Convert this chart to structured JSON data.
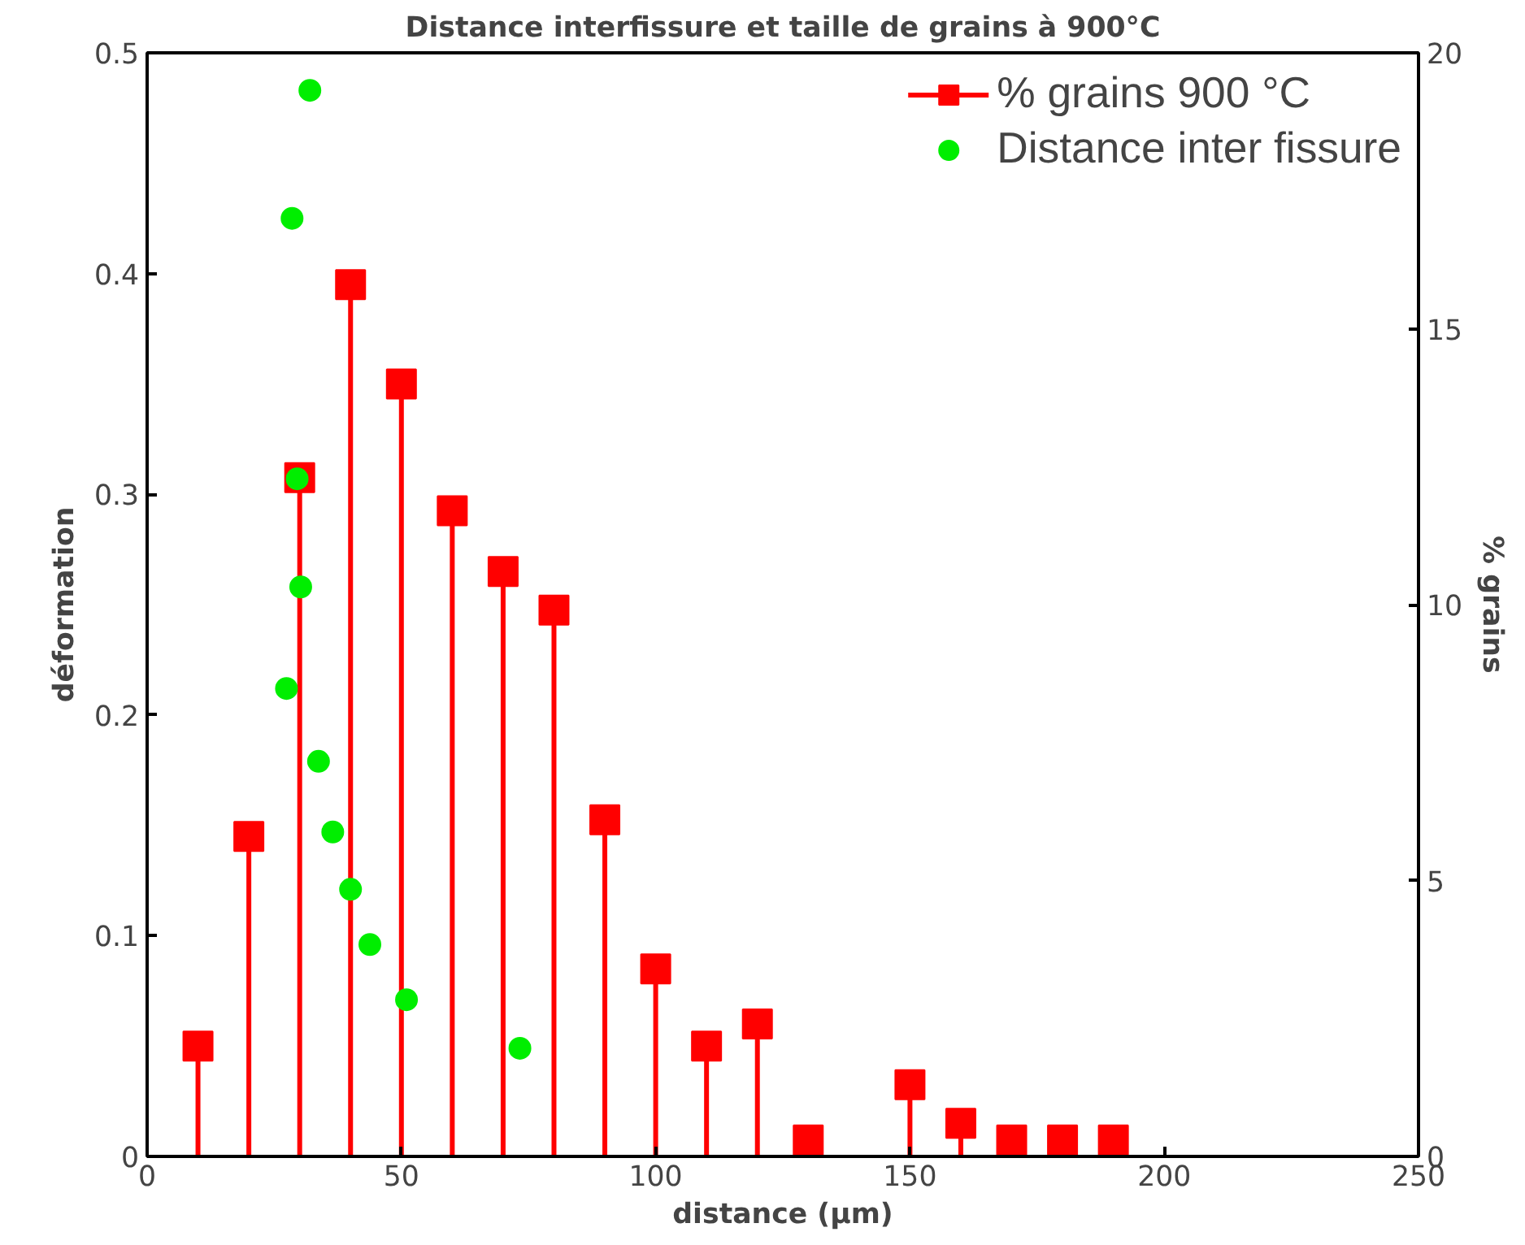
{
  "chart_data": {
    "type": "scatter",
    "title": "Distance interfissure et taille de grains à 900°C",
    "xlabel": "distance (µm)",
    "ylabel": "déformation",
    "y2label": "% grains",
    "xlim": [
      0,
      250
    ],
    "xticks": [
      0,
      50,
      100,
      150,
      200,
      250
    ],
    "ylim": [
      0,
      0.5
    ],
    "yticks": [
      0,
      0.1,
      0.2,
      0.3,
      0.4,
      0.5
    ],
    "y2lim": [
      0,
      20
    ],
    "y2ticks": [
      0,
      5,
      10,
      15,
      20
    ],
    "grid": false,
    "legend": "top right",
    "series": [
      {
        "name": "% grains 900 °C",
        "type": "lollipop",
        "axis": "y2",
        "marker": "square",
        "color": "#ff0000",
        "x": [
          10,
          20,
          30,
          40,
          50,
          60,
          70,
          80,
          90,
          100,
          110,
          120,
          130,
          150,
          160,
          170,
          180,
          190
        ],
        "values": [
          2.0,
          5.8,
          12.3,
          15.8,
          14.0,
          11.7,
          10.6,
          9.9,
          6.1,
          3.4,
          2.0,
          2.4,
          0.3,
          1.3,
          0.6,
          0.3,
          0.3,
          0.3
        ]
      },
      {
        "name": "Distance inter fissure",
        "marker": "circle",
        "color": "#00ee00",
        "x": [
          32,
          28.5,
          29.5,
          30.2,
          27.4,
          33.7,
          36.5,
          40,
          43.8,
          51,
          73.3
        ],
        "values": [
          0.483,
          0.425,
          0.307,
          0.258,
          0.212,
          0.179,
          0.147,
          0.121,
          0.096,
          0.071,
          0.049
        ]
      }
    ]
  }
}
